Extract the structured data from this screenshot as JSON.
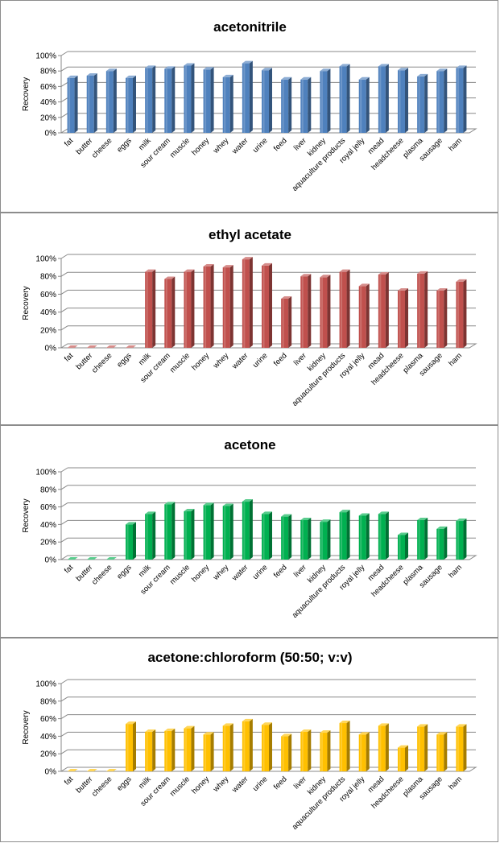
{
  "chart_data": [
    {
      "type": "bar",
      "title": "acetonitrile",
      "ylabel": "Recovery",
      "xlabel": "",
      "ylim": [
        0,
        100
      ],
      "ytick_labels": [
        "0%",
        "20%",
        "40%",
        "60%",
        "80%",
        "100%"
      ],
      "categories": [
        "fat",
        "butter",
        "cheese",
        "eggs",
        "milk",
        "sour cream",
        "muscle",
        "honey",
        "whey",
        "water",
        "urine",
        "feed",
        "liver",
        "kidney",
        "aquaculture products",
        "royal jelly",
        "mead",
        "headcheese",
        "plasma",
        "sausage",
        "ham"
      ],
      "values": [
        71,
        74,
        80,
        71,
        84,
        83,
        87,
        82,
        72,
        90,
        81,
        69,
        69,
        80,
        86,
        69,
        86,
        81,
        73,
        80,
        84
      ],
      "color": "#4f81bd",
      "grid": true
    },
    {
      "type": "bar",
      "title": "ethyl acetate",
      "ylabel": "Recovery",
      "xlabel": "",
      "ylim": [
        0,
        100
      ],
      "ytick_labels": [
        "0%",
        "20%",
        "40%",
        "60%",
        "80%",
        "100%"
      ],
      "categories": [
        "fat",
        "butter",
        "cheese",
        "eggs",
        "milk",
        "sour cream",
        "muscle",
        "honey",
        "whey",
        "water",
        "urine",
        "feed",
        "liver",
        "kidney",
        "aquaculture products",
        "royal jelly",
        "mead",
        "headcheese",
        "plasma",
        "sausage",
        "ham"
      ],
      "values": [
        0,
        0,
        0,
        0,
        85,
        77,
        85,
        91,
        90,
        99,
        92,
        55,
        80,
        79,
        85,
        69,
        82,
        64,
        83,
        64,
        74
      ],
      "color": "#c0504d",
      "grid": true
    },
    {
      "type": "bar",
      "title": "acetone",
      "ylabel": "Recovery",
      "xlabel": "",
      "ylim": [
        0,
        100
      ],
      "ytick_labels": [
        "0%",
        "20%",
        "40%",
        "60%",
        "80%",
        "100%"
      ],
      "categories": [
        "fat",
        "butter",
        "cheese",
        "eggs",
        "milk",
        "sour cream",
        "muscle",
        "honey",
        "whey",
        "water",
        "urine",
        "feed",
        "liver",
        "kidney",
        "aquaculture products",
        "royal jelly",
        "mead",
        "headcheese",
        "plasma",
        "sausage",
        "ham"
      ],
      "values": [
        0,
        0,
        0,
        40,
        52,
        63,
        55,
        62,
        61,
        66,
        52,
        49,
        45,
        43,
        54,
        50,
        52,
        28,
        45,
        35,
        44
      ],
      "color": "#00b050",
      "grid": true
    },
    {
      "type": "bar",
      "title": "acetone:chloroform (50:50; v:v)",
      "ylabel": "Recovery",
      "xlabel": "",
      "ylim": [
        0,
        100
      ],
      "ytick_labels": [
        "0%",
        "20%",
        "40%",
        "60%",
        "80%",
        "100%"
      ],
      "categories": [
        "fat",
        "butter",
        "cheese",
        "eggs",
        "milk",
        "sour cream",
        "muscle",
        "honey",
        "whey",
        "water",
        "urine",
        "feed",
        "liver",
        "kidney",
        "aquaculture products",
        "royal jelly",
        "mead",
        "headcheese",
        "plasma",
        "sausage",
        "ham"
      ],
      "values": [
        0,
        0,
        0,
        54,
        45,
        46,
        49,
        42,
        52,
        57,
        53,
        40,
        45,
        44,
        55,
        42,
        52,
        27,
        51,
        42,
        51
      ],
      "color": "#ffc000",
      "grid": true
    }
  ]
}
